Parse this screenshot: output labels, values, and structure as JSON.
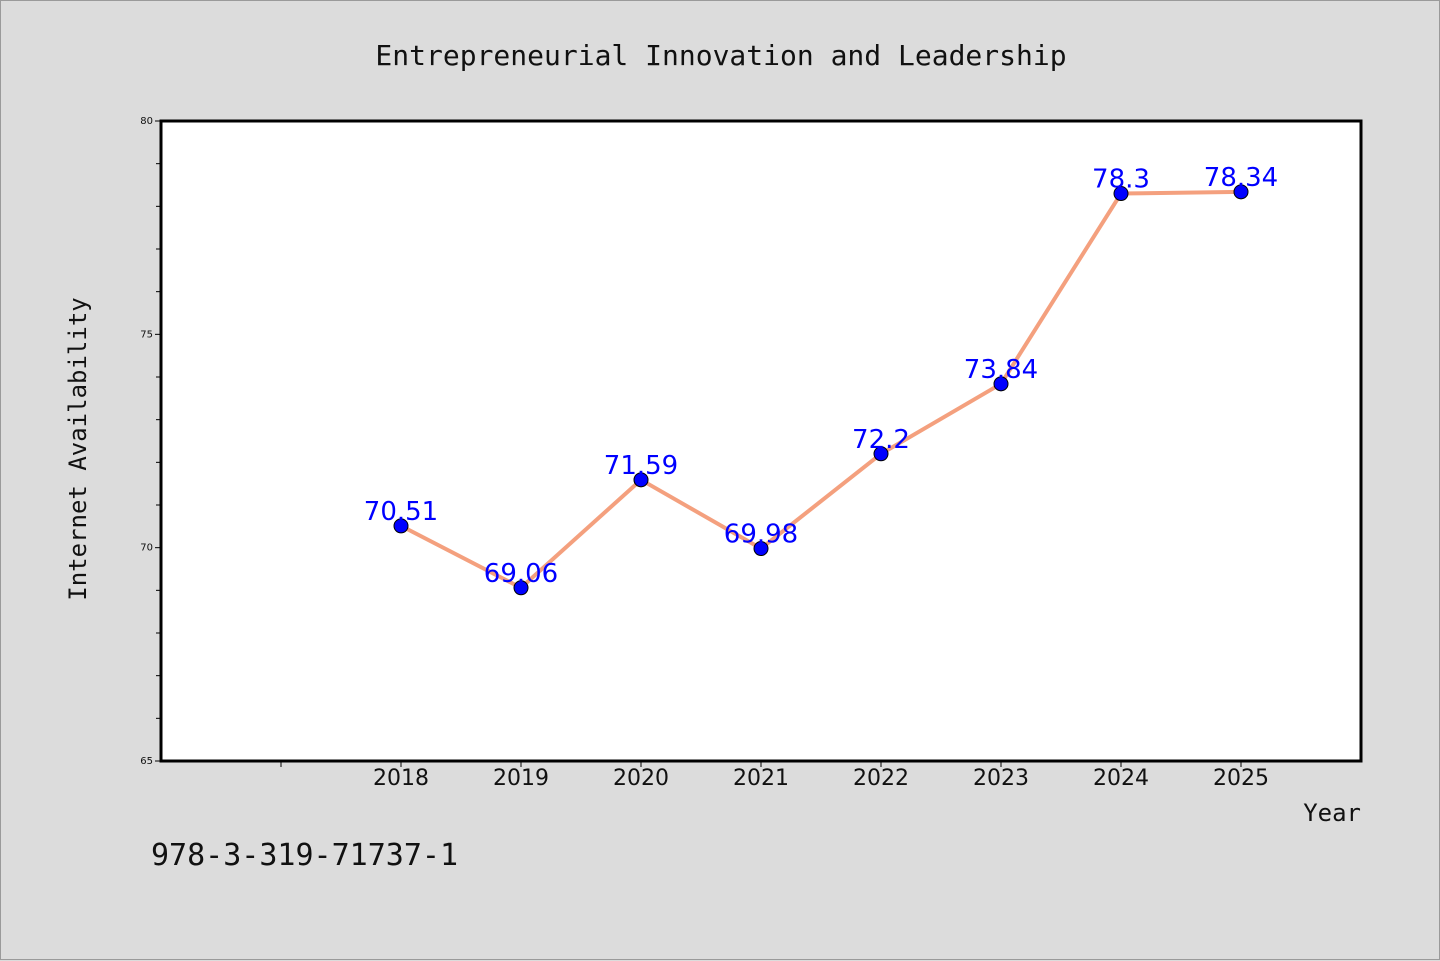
{
  "chart_data": {
    "type": "line",
    "title": "Entrepreneurial Innovation and Leadership",
    "xlabel": "Year",
    "ylabel": "Internet Availability",
    "categories": [
      "2018",
      "2019",
      "2020",
      "2021",
      "2022",
      "2023",
      "2024",
      "2025"
    ],
    "x_slots": 10,
    "values": [
      70.51,
      69.06,
      71.59,
      69.98,
      72.2,
      73.84,
      78.3,
      78.34
    ],
    "data_labels": [
      "70.51",
      "69.06",
      "71.59",
      "69.98",
      "72.2",
      "73.84",
      "78.3",
      "78.34"
    ],
    "ylim": [
      65,
      80
    ],
    "yticks": [
      65,
      70,
      75,
      80
    ],
    "grid": false,
    "legend": "none",
    "line_color": "#f4a07e",
    "marker_color": "#0000ff",
    "label_color": "#0000ff"
  },
  "footer_text": "978-3-319-71737-1"
}
